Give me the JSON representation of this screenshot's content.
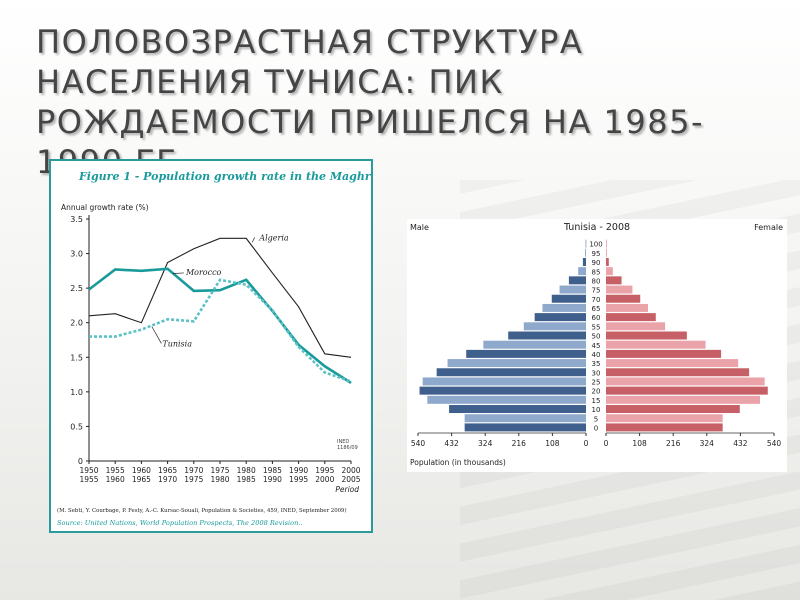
{
  "slide": {
    "title": "Половозрастная структура населения Туниса: пик рождаемости пришелся на 1985-1990 гг."
  },
  "colors": {
    "teal": "#1a9b9b",
    "male": "#3f5f8c",
    "male_light": "#8fa9cc",
    "female": "#c65f66",
    "female_light": "#eaa3a8"
  },
  "chart_data": [
    {
      "type": "line",
      "title": "Figure 1 - Population growth rate in the Maghreb",
      "ylabel": "Annual growth rate (%)",
      "xlabel": "Period",
      "ylim": [
        0,
        3.5
      ],
      "yticks": [
        "0",
        "0.5",
        "1.0",
        "1.5",
        "2.0",
        "2.5",
        "3.0",
        "3.5"
      ],
      "x": [
        1950,
        1955,
        1960,
        1965,
        1970,
        1975,
        1980,
        1985,
        1990,
        1995,
        2000
      ],
      "tick_labels_top": [
        "1950",
        "1955",
        "1960",
        "1965",
        "1970",
        "1975",
        "1980",
        "1985",
        "1990",
        "1995",
        "2000"
      ],
      "tick_labels_bottom": [
        "1955",
        "1960",
        "1965",
        "1970",
        "1975",
        "1980",
        "1985",
        "1990",
        "1995",
        "2000",
        "2005"
      ],
      "series": [
        {
          "name": "Algeria",
          "style": "thin-black",
          "values": [
            2.1,
            2.13,
            2.0,
            2.87,
            3.07,
            3.22,
            3.22,
            2.72,
            2.23,
            1.55,
            1.5
          ]
        },
        {
          "name": "Morocco",
          "style": "teal-solid",
          "values": [
            2.48,
            2.77,
            2.75,
            2.78,
            2.46,
            2.47,
            2.62,
            2.17,
            1.68,
            1.37,
            1.13
          ]
        },
        {
          "name": "Tunisia",
          "style": "teal-dashed",
          "values": [
            1.8,
            1.8,
            1.9,
            2.05,
            2.02,
            2.62,
            2.55,
            2.18,
            1.65,
            1.28,
            1.15
          ]
        }
      ],
      "inset_note": "INED\n1186/09",
      "footnote": "(M. Sebti, Y. Courbage, P. Festy, A.-C. Kursac-Souali, Population & Societies, 459, INED, September 2009)",
      "source": "Source: United Nations, World Population Prospects, The 2008 Revision.."
    },
    {
      "type": "population-pyramid",
      "title": "Tunisia - 2008",
      "left_label": "Male",
      "right_label": "Female",
      "xlabel": "Population (in thousands)",
      "xmax": 540,
      "xticks_left": [
        "540",
        "432",
        "324",
        "216",
        "108",
        "0"
      ],
      "xticks_right": [
        "0",
        "108",
        "216",
        "324",
        "432",
        "540"
      ],
      "age_groups": [
        "0",
        "5",
        "10",
        "15",
        "20",
        "25",
        "30",
        "35",
        "40",
        "45",
        "50",
        "55",
        "60",
        "65",
        "70",
        "75",
        "80",
        "85",
        "90",
        "95",
        "100"
      ],
      "male": [
        390,
        390,
        440,
        510,
        535,
        525,
        480,
        445,
        385,
        330,
        250,
        200,
        165,
        140,
        110,
        85,
        55,
        25,
        10,
        3,
        1
      ],
      "female": [
        375,
        375,
        430,
        495,
        520,
        510,
        460,
        425,
        370,
        320,
        260,
        190,
        160,
        135,
        110,
        85,
        50,
        22,
        9,
        3,
        1
      ]
    }
  ]
}
